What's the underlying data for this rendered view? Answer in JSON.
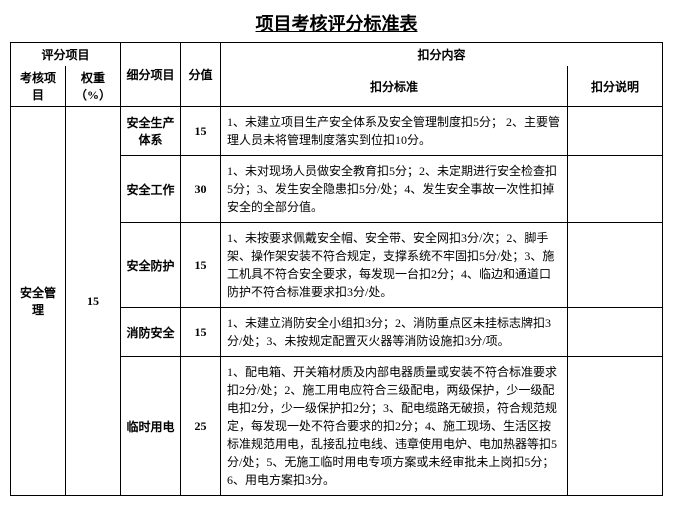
{
  "doc_title": "项目考核评分标准表",
  "group_header_left": "评分项目",
  "group_header_right": "扣分内容",
  "columns": {
    "project": "考核项目",
    "weight": "权重（%）",
    "sub": "细分项目",
    "score": "分值",
    "standard": "扣分标准",
    "desc": "扣分说明"
  },
  "category": {
    "name": "安全管理",
    "weight": "15"
  },
  "rows": [
    {
      "sub": "安全生产体系",
      "score": "15",
      "standard": "1、未建立项目生产安全体系及安全管理制度扣5分； 2、主要管理人员未将管理制度落实到位扣10分。"
    },
    {
      "sub": "安全工作",
      "score": "30",
      "standard": "1、未对现场人员做安全教育扣5分；2、未定期进行安全检查扣5分；3、发生安全隐患扣5分/处；4、发生安全事故一次性扣掉安全的全部分值。"
    },
    {
      "sub": "安全防护",
      "score": "15",
      "standard": "1、未按要求佩戴安全帽、安全带、安全网扣3分/次；2、脚手架、操作架安装不符合规定，支撑系统不牢固扣5分/处；3、施工机具不符合安全要求，每发现一台扣2分；4、临边和通道口防护不符合标准要求扣3分/处。"
    },
    {
      "sub": "消防安全",
      "score": "15",
      "standard": "1、未建立消防安全小组扣3分；2、消防重点区未挂标志牌扣3分/处；3、未按规定配置灭火器等消防设施扣3分/项。"
    },
    {
      "sub": "临时用电",
      "score": "25",
      "standard": "1、配电箱、开关箱材质及内部电器质量或安装不符合标准要求扣2分/处；2、施工用电应符合三级配电，两级保护，少一级配电扣2分，少一级保护扣2分；3、配电缆路无破损，符合规范规定，每发现一处不符合要求的扣2分；4、施工现场、生活区按标准规范用电，乱接乱拉电线、违章使用电炉、电加热器等扣5分/处；5、无施工临时用电专项方案或未经审批未上岗扣5分；6、用电方案扣3分。"
    }
  ]
}
